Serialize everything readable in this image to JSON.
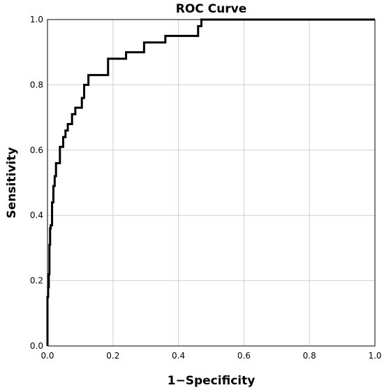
{
  "chart_data": {
    "type": "line",
    "title": "ROC Curve",
    "xlabel": "1−Specificity",
    "ylabel": "Sensitivity",
    "xlim": [
      0.0,
      1.0
    ],
    "ylim": [
      0.0,
      1.0
    ],
    "x_ticks": [
      "0.0",
      "0.2",
      "0.4",
      "0.6",
      "0.8",
      "1.0"
    ],
    "y_ticks": [
      "0.0",
      "0.2",
      "0.4",
      "0.6",
      "0.8",
      "1.0"
    ],
    "grid": true,
    "series": [
      {
        "color": "#000000",
        "x": [
          0.0,
          0.0,
          0.002,
          0.002,
          0.004,
          0.004,
          0.006,
          0.006,
          0.008,
          0.008,
          0.01,
          0.01,
          0.014,
          0.014,
          0.018,
          0.018,
          0.022,
          0.022,
          0.026,
          0.026,
          0.038,
          0.038,
          0.048,
          0.048,
          0.055,
          0.055,
          0.062,
          0.062,
          0.075,
          0.075,
          0.085,
          0.085,
          0.105,
          0.105,
          0.112,
          0.112,
          0.125,
          0.125,
          0.185,
          0.185,
          0.24,
          0.24,
          0.295,
          0.295,
          0.36,
          0.36,
          0.46,
          0.46,
          0.47,
          0.47,
          1.0
        ],
        "y": [
          0.0,
          0.15,
          0.15,
          0.18,
          0.18,
          0.22,
          0.22,
          0.31,
          0.31,
          0.36,
          0.36,
          0.37,
          0.37,
          0.44,
          0.44,
          0.49,
          0.49,
          0.52,
          0.52,
          0.56,
          0.56,
          0.61,
          0.61,
          0.64,
          0.64,
          0.66,
          0.66,
          0.68,
          0.68,
          0.71,
          0.71,
          0.73,
          0.73,
          0.76,
          0.76,
          0.8,
          0.8,
          0.83,
          0.83,
          0.88,
          0.88,
          0.9,
          0.9,
          0.93,
          0.93,
          0.95,
          0.95,
          0.98,
          0.98,
          1.0,
          1.0
        ]
      }
    ]
  }
}
